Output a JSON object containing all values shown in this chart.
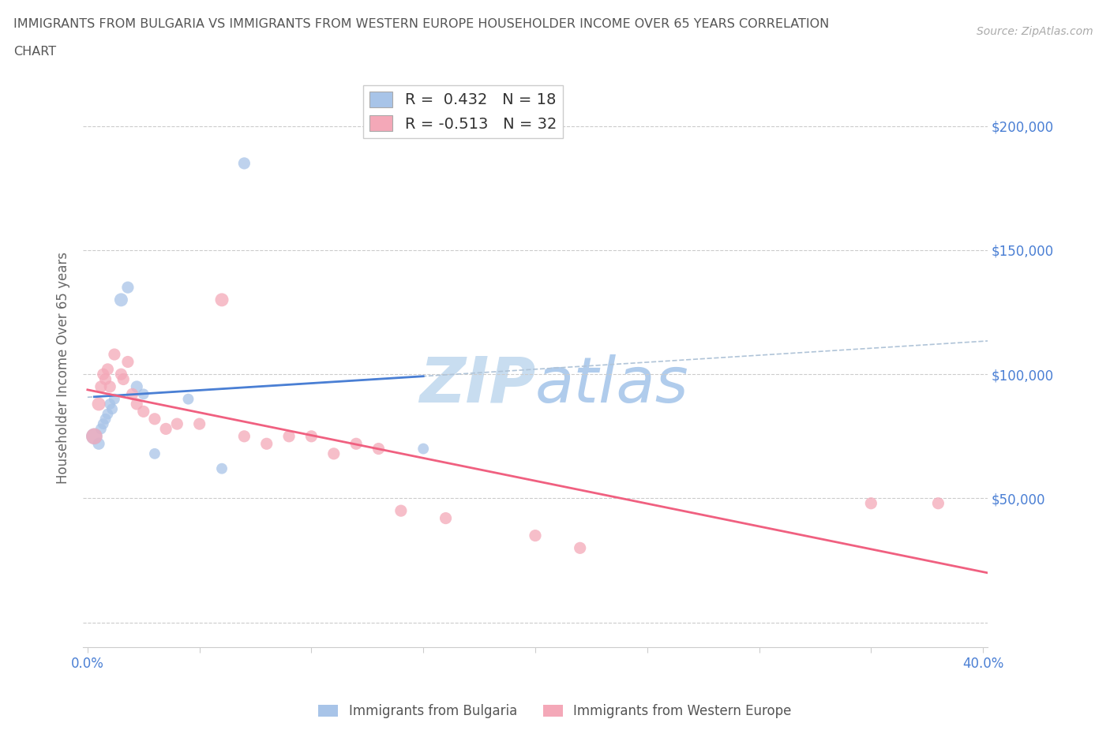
{
  "title_line1": "IMMIGRANTS FROM BULGARIA VS IMMIGRANTS FROM WESTERN EUROPE HOUSEHOLDER INCOME OVER 65 YEARS CORRELATION",
  "title_line2": "CHART",
  "source_text": "Source: ZipAtlas.com",
  "ylabel": "Householder Income Over 65 years",
  "xlim": [
    -0.002,
    0.402
  ],
  "ylim": [
    -10000,
    215000
  ],
  "x_ticks": [
    0.0,
    0.05,
    0.1,
    0.15,
    0.2,
    0.25,
    0.3,
    0.35,
    0.4
  ],
  "y_ticks": [
    0,
    50000,
    100000,
    150000,
    200000
  ],
  "R_bulgaria": 0.432,
  "N_bulgaria": 18,
  "R_western": -0.513,
  "N_western": 32,
  "color_bulgaria": "#a8c4e8",
  "color_western": "#f4a8b8",
  "color_bulgaria_line": "#4a7fd4",
  "color_western_line": "#f06080",
  "color_dashed": "#b0c4d8",
  "watermark_color": "#d0e4f4",
  "bulgaria_points": [
    [
      0.003,
      75000,
      220
    ],
    [
      0.005,
      72000,
      120
    ],
    [
      0.006,
      78000,
      100
    ],
    [
      0.007,
      80000,
      100
    ],
    [
      0.008,
      82000,
      100
    ],
    [
      0.009,
      84000,
      100
    ],
    [
      0.01,
      88000,
      100
    ],
    [
      0.011,
      86000,
      100
    ],
    [
      0.012,
      90000,
      100
    ],
    [
      0.015,
      130000,
      150
    ],
    [
      0.018,
      135000,
      120
    ],
    [
      0.022,
      95000,
      120
    ],
    [
      0.025,
      92000,
      100
    ],
    [
      0.03,
      68000,
      100
    ],
    [
      0.045,
      90000,
      100
    ],
    [
      0.06,
      62000,
      100
    ],
    [
      0.07,
      185000,
      120
    ],
    [
      0.15,
      70000,
      100
    ]
  ],
  "western_points": [
    [
      0.003,
      75000,
      220
    ],
    [
      0.005,
      88000,
      150
    ],
    [
      0.006,
      95000,
      120
    ],
    [
      0.007,
      100000,
      120
    ],
    [
      0.008,
      98000,
      120
    ],
    [
      0.009,
      102000,
      120
    ],
    [
      0.01,
      95000,
      120
    ],
    [
      0.012,
      108000,
      120
    ],
    [
      0.015,
      100000,
      120
    ],
    [
      0.016,
      98000,
      120
    ],
    [
      0.018,
      105000,
      120
    ],
    [
      0.02,
      92000,
      120
    ],
    [
      0.022,
      88000,
      120
    ],
    [
      0.025,
      85000,
      120
    ],
    [
      0.03,
      82000,
      120
    ],
    [
      0.035,
      78000,
      120
    ],
    [
      0.04,
      80000,
      120
    ],
    [
      0.05,
      80000,
      120
    ],
    [
      0.06,
      130000,
      150
    ],
    [
      0.07,
      75000,
      120
    ],
    [
      0.08,
      72000,
      120
    ],
    [
      0.09,
      75000,
      120
    ],
    [
      0.1,
      75000,
      120
    ],
    [
      0.11,
      68000,
      120
    ],
    [
      0.12,
      72000,
      120
    ],
    [
      0.13,
      70000,
      120
    ],
    [
      0.14,
      45000,
      120
    ],
    [
      0.16,
      42000,
      120
    ],
    [
      0.2,
      35000,
      120
    ],
    [
      0.22,
      30000,
      120
    ],
    [
      0.35,
      48000,
      120
    ],
    [
      0.38,
      48000,
      120
    ]
  ]
}
